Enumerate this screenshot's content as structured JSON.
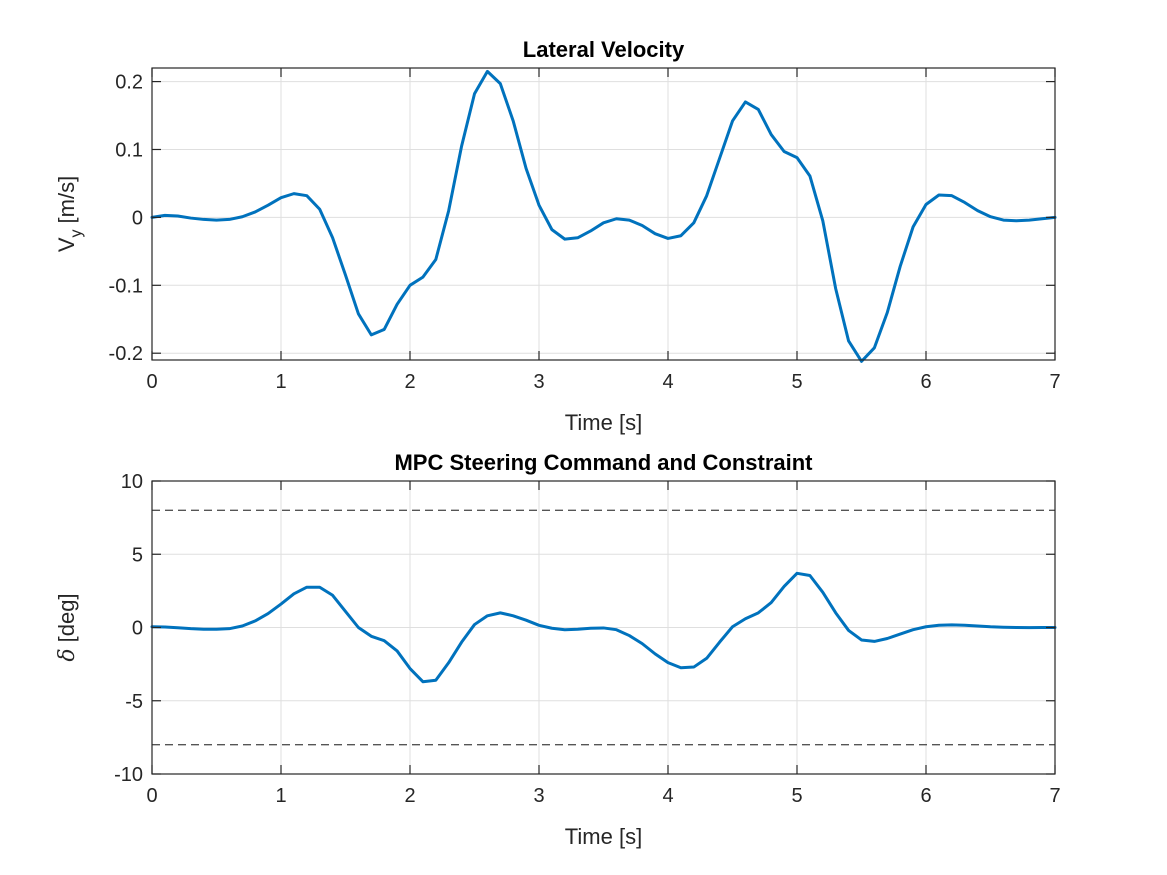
{
  "chart_data": [
    {
      "type": "line",
      "title": "Lateral Velocity",
      "xlabel": "Time [s]",
      "ylabel_main": "V",
      "ylabel_sub": "y",
      "ylabel_unit": "[m/s]",
      "xlim": [
        0,
        7
      ],
      "ylim": [
        -0.21,
        0.22
      ],
      "xticks": [
        0,
        1,
        2,
        3,
        4,
        5,
        6,
        7
      ],
      "xtick_labels": [
        "0",
        "1",
        "2",
        "3",
        "4",
        "5",
        "6",
        "7"
      ],
      "yticks": [
        -0.2,
        -0.1,
        0,
        0.1,
        0.2
      ],
      "ytick_labels": [
        "-0.2",
        "-0.1",
        "0",
        "0.1",
        "0.2"
      ],
      "grid": true,
      "series": [
        {
          "color": "#0072BD",
          "x": [
            0,
            0.1,
            0.2,
            0.3,
            0.4,
            0.5,
            0.6,
            0.7,
            0.8,
            0.9,
            1.0,
            1.1,
            1.2,
            1.3,
            1.4,
            1.5,
            1.6,
            1.7,
            1.8,
            1.9,
            2.0,
            2.1,
            2.2,
            2.3,
            2.4,
            2.5,
            2.6,
            2.7,
            2.8,
            2.9,
            3.0,
            3.1,
            3.2,
            3.3,
            3.4,
            3.5,
            3.6,
            3.7,
            3.8,
            3.9,
            4.0,
            4.1,
            4.2,
            4.3,
            4.4,
            4.5,
            4.6,
            4.7,
            4.8,
            4.9,
            5.0,
            5.1,
            5.2,
            5.3,
            5.4,
            5.5,
            5.6,
            5.7,
            5.8,
            5.9,
            6.0,
            6.1,
            6.2,
            6.3,
            6.4,
            6.5,
            6.6,
            6.7,
            6.8,
            6.9,
            7.0
          ],
          "y": [
            0,
            0.003,
            0.002,
            -0.001,
            -0.003,
            -0.004,
            -0.003,
            0.001,
            0.008,
            0.018,
            0.029,
            0.035,
            0.032,
            0.012,
            -0.03,
            -0.085,
            -0.142,
            -0.173,
            -0.165,
            -0.128,
            -0.1,
            -0.088,
            -0.062,
            0.01,
            0.105,
            0.182,
            0.215,
            0.197,
            0.142,
            0.072,
            0.018,
            -0.018,
            -0.032,
            -0.03,
            -0.02,
            -0.008,
            -0.002,
            -0.004,
            -0.012,
            -0.024,
            -0.031,
            -0.027,
            -0.008,
            0.032,
            0.087,
            0.142,
            0.17,
            0.159,
            0.122,
            0.097,
            0.088,
            0.061,
            -0.005,
            -0.105,
            -0.182,
            -0.212,
            -0.192,
            -0.14,
            -0.072,
            -0.014,
            0.019,
            0.033,
            0.032,
            0.022,
            0.01,
            0.001,
            -0.004,
            -0.005,
            -0.004,
            -0.002,
            0
          ]
        }
      ]
    },
    {
      "type": "line",
      "title": "MPC Steering Command and Constraint",
      "xlabel": "Time [s]",
      "ylabel_main": "δ",
      "ylabel_unit": "[deg]",
      "xlim": [
        0,
        7
      ],
      "ylim": [
        -10,
        10
      ],
      "xticks": [
        0,
        1,
        2,
        3,
        4,
        5,
        6,
        7
      ],
      "xtick_labels": [
        "0",
        "1",
        "2",
        "3",
        "4",
        "5",
        "6",
        "7"
      ],
      "yticks": [
        -10,
        -5,
        0,
        5,
        10
      ],
      "ytick_labels": [
        "-10",
        "-5",
        "0",
        "5",
        "10"
      ],
      "grid": true,
      "constraints": [
        8,
        -8
      ],
      "constraint_color": "#555555",
      "series": [
        {
          "color": "#0072BD",
          "x": [
            0,
            0.1,
            0.2,
            0.3,
            0.4,
            0.5,
            0.6,
            0.7,
            0.8,
            0.9,
            1.0,
            1.1,
            1.2,
            1.3,
            1.4,
            1.5,
            1.6,
            1.7,
            1.8,
            1.9,
            2.0,
            2.1,
            2.2,
            2.3,
            2.4,
            2.5,
            2.6,
            2.7,
            2.8,
            2.9,
            3.0,
            3.1,
            3.2,
            3.3,
            3.4,
            3.5,
            3.6,
            3.7,
            3.8,
            3.9,
            4.0,
            4.1,
            4.2,
            4.3,
            4.4,
            4.5,
            4.6,
            4.7,
            4.8,
            4.9,
            5.0,
            5.1,
            5.2,
            5.3,
            5.4,
            5.5,
            5.6,
            5.7,
            5.8,
            5.9,
            6.0,
            6.1,
            6.2,
            6.3,
            6.4,
            6.5,
            6.6,
            6.7,
            6.8,
            6.9,
            7.0
          ],
          "y": [
            0.05,
            0.03,
            -0.02,
            -0.08,
            -0.12,
            -0.12,
            -0.08,
            0.1,
            0.45,
            0.95,
            1.6,
            2.3,
            2.75,
            2.75,
            2.2,
            1.1,
            0,
            -0.6,
            -0.9,
            -1.6,
            -2.8,
            -3.7,
            -3.6,
            -2.4,
            -1.0,
            0.2,
            0.8,
            1.0,
            0.8,
            0.5,
            0.15,
            -0.05,
            -0.15,
            -0.12,
            -0.05,
            -0.03,
            -0.15,
            -0.55,
            -1.1,
            -1.8,
            -2.4,
            -2.75,
            -2.7,
            -2.1,
            -1.0,
            0.05,
            0.6,
            1.0,
            1.7,
            2.8,
            3.7,
            3.55,
            2.4,
            1.0,
            -0.2,
            -0.85,
            -0.95,
            -0.75,
            -0.45,
            -0.15,
            0.05,
            0.15,
            0.18,
            0.15,
            0.1,
            0.05,
            0.02,
            0,
            -0.01,
            0,
            0
          ]
        }
      ]
    }
  ]
}
